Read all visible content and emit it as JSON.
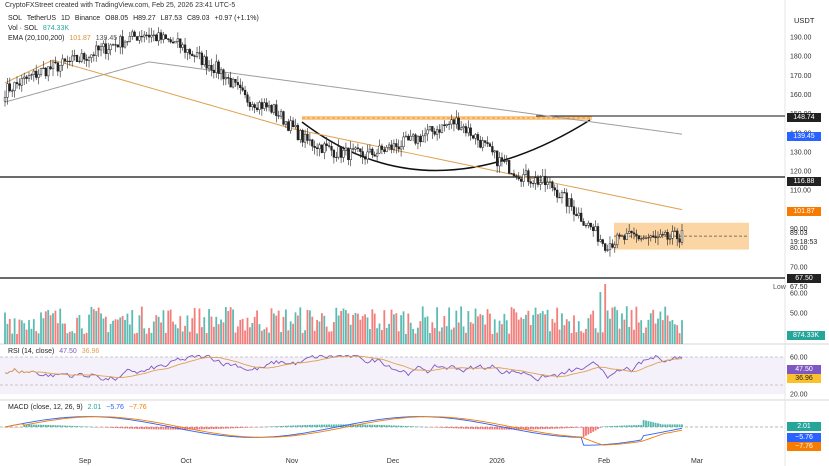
{
  "header": {
    "credit": "CryptoFXStreet created with TradingView.com, Feb 25, 2026 23:41 UTC-5",
    "symbol_line": [
      "SOL",
      "TetherUS",
      "1D",
      "Binance",
      "O88.05",
      "H89.27",
      "L87.53",
      "C89.03",
      "+0.97 (+1.1%)"
    ],
    "vol_label": "Vol · SOL",
    "vol_value": "874.33K",
    "ema_label": "EMA (20,100,200)",
    "ema_values": [
      "101.87",
      "139.45"
    ]
  },
  "price_axis": {
    "currency": "USDT",
    "ticks": [
      "190.00",
      "180.00",
      "170.00",
      "160.00",
      "150.00",
      "140.00",
      "130.00",
      "120.00",
      "110.00",
      "100.00",
      "90.00",
      "80.00",
      "70.00",
      "60.00",
      "50.00"
    ],
    "badges": {
      "resistance_top": "148.74",
      "ema200": "139.45",
      "resistance_mid": "116.88",
      "ema100": "101.87",
      "last_price": "89.03",
      "countdown": "19:18:53",
      "support": "67.50",
      "low_label": "Low",
      "low_value": "67.50",
      "volume": "874.33K"
    }
  },
  "rsi": {
    "label": "RSI (14, close)",
    "values": [
      "47.50",
      "36.96"
    ],
    "ticks": [
      "60.00",
      "40.00",
      "20.00"
    ],
    "badges": [
      "47.50",
      "36.96"
    ]
  },
  "macd": {
    "label": "MACD (close, 12, 26, 9)",
    "values": [
      "2.01",
      "−5.76",
      "−7.76"
    ],
    "badges": [
      "2.01",
      "−5.76",
      "−7.76"
    ]
  },
  "time_axis": [
    "Sep",
    "Oct",
    "Nov",
    "Dec",
    "2026",
    "Feb",
    "Mar"
  ],
  "colors": {
    "up": "#26a69a",
    "down": "#ef5350",
    "ema200": "#9e9e9e",
    "ema100": "#e0a050",
    "zone": "#f9c784",
    "rsi": "#7e57c2",
    "macd": "#2962ff"
  }
}
